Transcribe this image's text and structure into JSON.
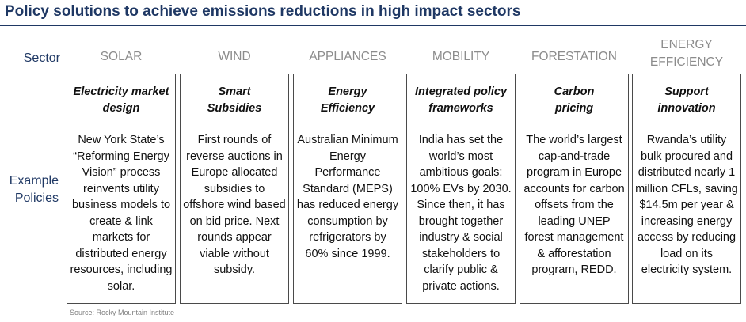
{
  "title": "Policy solutions to achieve emissions reductions in high impact sectors",
  "row_labels": {
    "sector": "Sector",
    "policies": "Example\nPolicies"
  },
  "columns": [
    {
      "sector": "SOLAR",
      "policy_title": "Electricity market design",
      "policy_text": "New York State’s “Reforming Energy Vision” process reinvents utility business models to create & link markets for distributed energy resources, including solar."
    },
    {
      "sector": "WIND",
      "policy_title": "Smart Subsidies",
      "policy_text": "First rounds of reverse auctions in Europe allocated subsidies to offshore wind based on bid price. Next rounds appear viable without subsidy."
    },
    {
      "sector": "APPLIANCES",
      "policy_title": "Energy Efficiency",
      "policy_text": "Australian Minimum Energy Performance Standard (MEPS) has reduced energy consumption by refrigerators by 60% since 1999."
    },
    {
      "sector": "MOBILITY",
      "policy_title": "Integrated policy frameworks",
      "policy_text": "India has set the world’s most ambitious goals: 100% EVs by 2030. Since then, it has brought together industry & social stakeholders to clarify public & private actions."
    },
    {
      "sector": "FORESTATION",
      "policy_title": "Carbon pricing",
      "policy_text": "The world’s largest cap-and-trade program in Europe accounts for carbon offsets from the leading UNEP forest management & afforestation program, REDD."
    },
    {
      "sector": "ENERGY EFFICIENCY",
      "policy_title": "Support innovation",
      "policy_text": "Rwanda’s utility bulk procured and distributed nearly 1 million CFLs, saving $14.5m per year & increasing energy access by reducing load on its electricity system."
    }
  ],
  "source": "Source: Rocky Mountain Institute",
  "colors": {
    "title": "#1f3864",
    "sector_heading": "#8c8c8c",
    "card_border": "#4a4a4a"
  }
}
